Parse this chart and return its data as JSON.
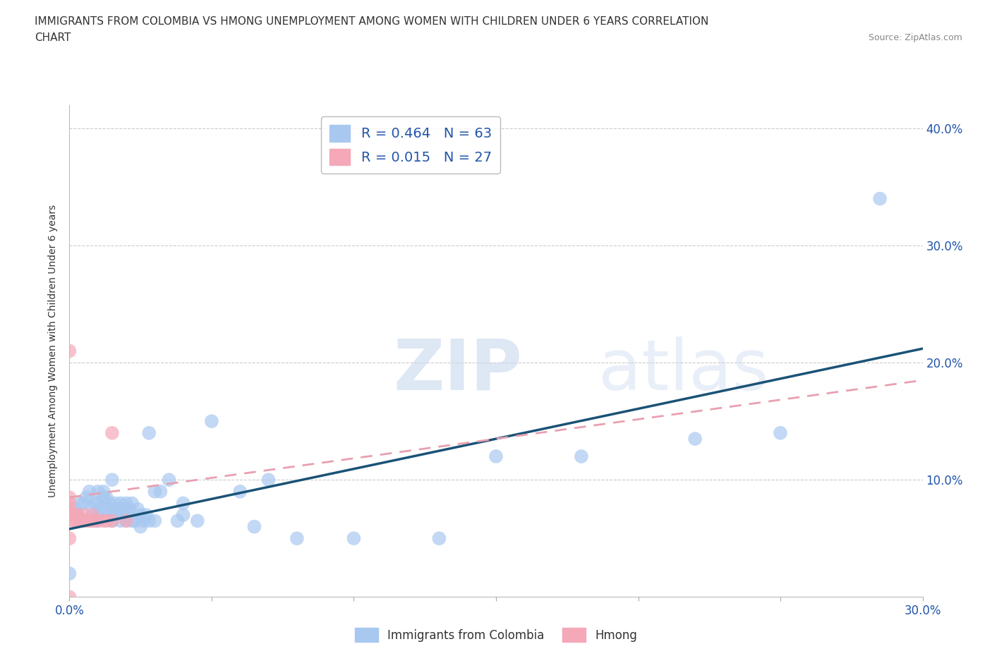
{
  "title_line1": "IMMIGRANTS FROM COLOMBIA VS HMONG UNEMPLOYMENT AMONG WOMEN WITH CHILDREN UNDER 6 YEARS CORRELATION",
  "title_line2": "CHART",
  "source": "Source: ZipAtlas.com",
  "ylabel": "Unemployment Among Women with Children Under 6 years",
  "xlim": [
    0.0,
    0.3
  ],
  "ylim": [
    0.0,
    0.42
  ],
  "xticks": [
    0.0,
    0.05,
    0.1,
    0.15,
    0.2,
    0.25,
    0.3
  ],
  "xticklabels": [
    "0.0%",
    "",
    "",
    "",
    "",
    "",
    "30.0%"
  ],
  "yticks": [
    0.0,
    0.1,
    0.2,
    0.3,
    0.4
  ],
  "yticklabels_right": [
    "",
    "10.0%",
    "20.0%",
    "30.0%",
    "40.0%"
  ],
  "colombia_R": 0.464,
  "colombia_N": 63,
  "hmong_R": 0.015,
  "hmong_N": 27,
  "colombia_color": "#a8c8f0",
  "hmong_color": "#f4a8b8",
  "colombia_line_color": "#1a5276",
  "hmong_line_color": "#e8a0b0",
  "grid_color": "#cccccc",
  "background_color": "#ffffff",
  "watermark_zip": "ZIP",
  "watermark_atlas": "atlas",
  "colombia_scatter_x": [
    0.0,
    0.002,
    0.003,
    0.004,
    0.005,
    0.006,
    0.007,
    0.008,
    0.009,
    0.01,
    0.01,
    0.01,
    0.01,
    0.011,
    0.012,
    0.012,
    0.013,
    0.013,
    0.014,
    0.015,
    0.015,
    0.015,
    0.015,
    0.016,
    0.016,
    0.017,
    0.018,
    0.018,
    0.019,
    0.02,
    0.02,
    0.02,
    0.021,
    0.022,
    0.022,
    0.023,
    0.024,
    0.025,
    0.025,
    0.026,
    0.027,
    0.028,
    0.028,
    0.03,
    0.03,
    0.032,
    0.035,
    0.038,
    0.04,
    0.04,
    0.045,
    0.05,
    0.06,
    0.065,
    0.07,
    0.08,
    0.1,
    0.13,
    0.15,
    0.18,
    0.22,
    0.25,
    0.285
  ],
  "colombia_scatter_y": [
    0.02,
    0.075,
    0.07,
    0.08,
    0.08,
    0.085,
    0.09,
    0.075,
    0.08,
    0.065,
    0.07,
    0.08,
    0.09,
    0.075,
    0.085,
    0.09,
    0.075,
    0.085,
    0.08,
    0.065,
    0.07,
    0.075,
    0.1,
    0.07,
    0.08,
    0.075,
    0.065,
    0.08,
    0.075,
    0.065,
    0.07,
    0.08,
    0.075,
    0.065,
    0.08,
    0.065,
    0.075,
    0.06,
    0.07,
    0.065,
    0.07,
    0.065,
    0.14,
    0.065,
    0.09,
    0.09,
    0.1,
    0.065,
    0.07,
    0.08,
    0.065,
    0.15,
    0.09,
    0.06,
    0.1,
    0.05,
    0.05,
    0.05,
    0.12,
    0.12,
    0.135,
    0.14,
    0.34
  ],
  "hmong_scatter_x": [
    0.0,
    0.0,
    0.0,
    0.0,
    0.0,
    0.001,
    0.001,
    0.002,
    0.002,
    0.003,
    0.003,
    0.004,
    0.005,
    0.005,
    0.006,
    0.007,
    0.008,
    0.008,
    0.009,
    0.01,
    0.012,
    0.013,
    0.015,
    0.015,
    0.02,
    0.0,
    0.0
  ],
  "hmong_scatter_y": [
    0.07,
    0.075,
    0.08,
    0.085,
    0.21,
    0.065,
    0.07,
    0.065,
    0.07,
    0.065,
    0.07,
    0.065,
    0.065,
    0.07,
    0.065,
    0.065,
    0.065,
    0.07,
    0.065,
    0.065,
    0.065,
    0.065,
    0.065,
    0.14,
    0.065,
    0.05,
    0.0
  ],
  "colombia_trend_x": [
    0.0,
    0.3
  ],
  "colombia_trend_y": [
    0.058,
    0.212
  ],
  "hmong_trend_x": [
    0.0,
    0.3
  ],
  "hmong_trend_y": [
    0.085,
    0.185
  ]
}
